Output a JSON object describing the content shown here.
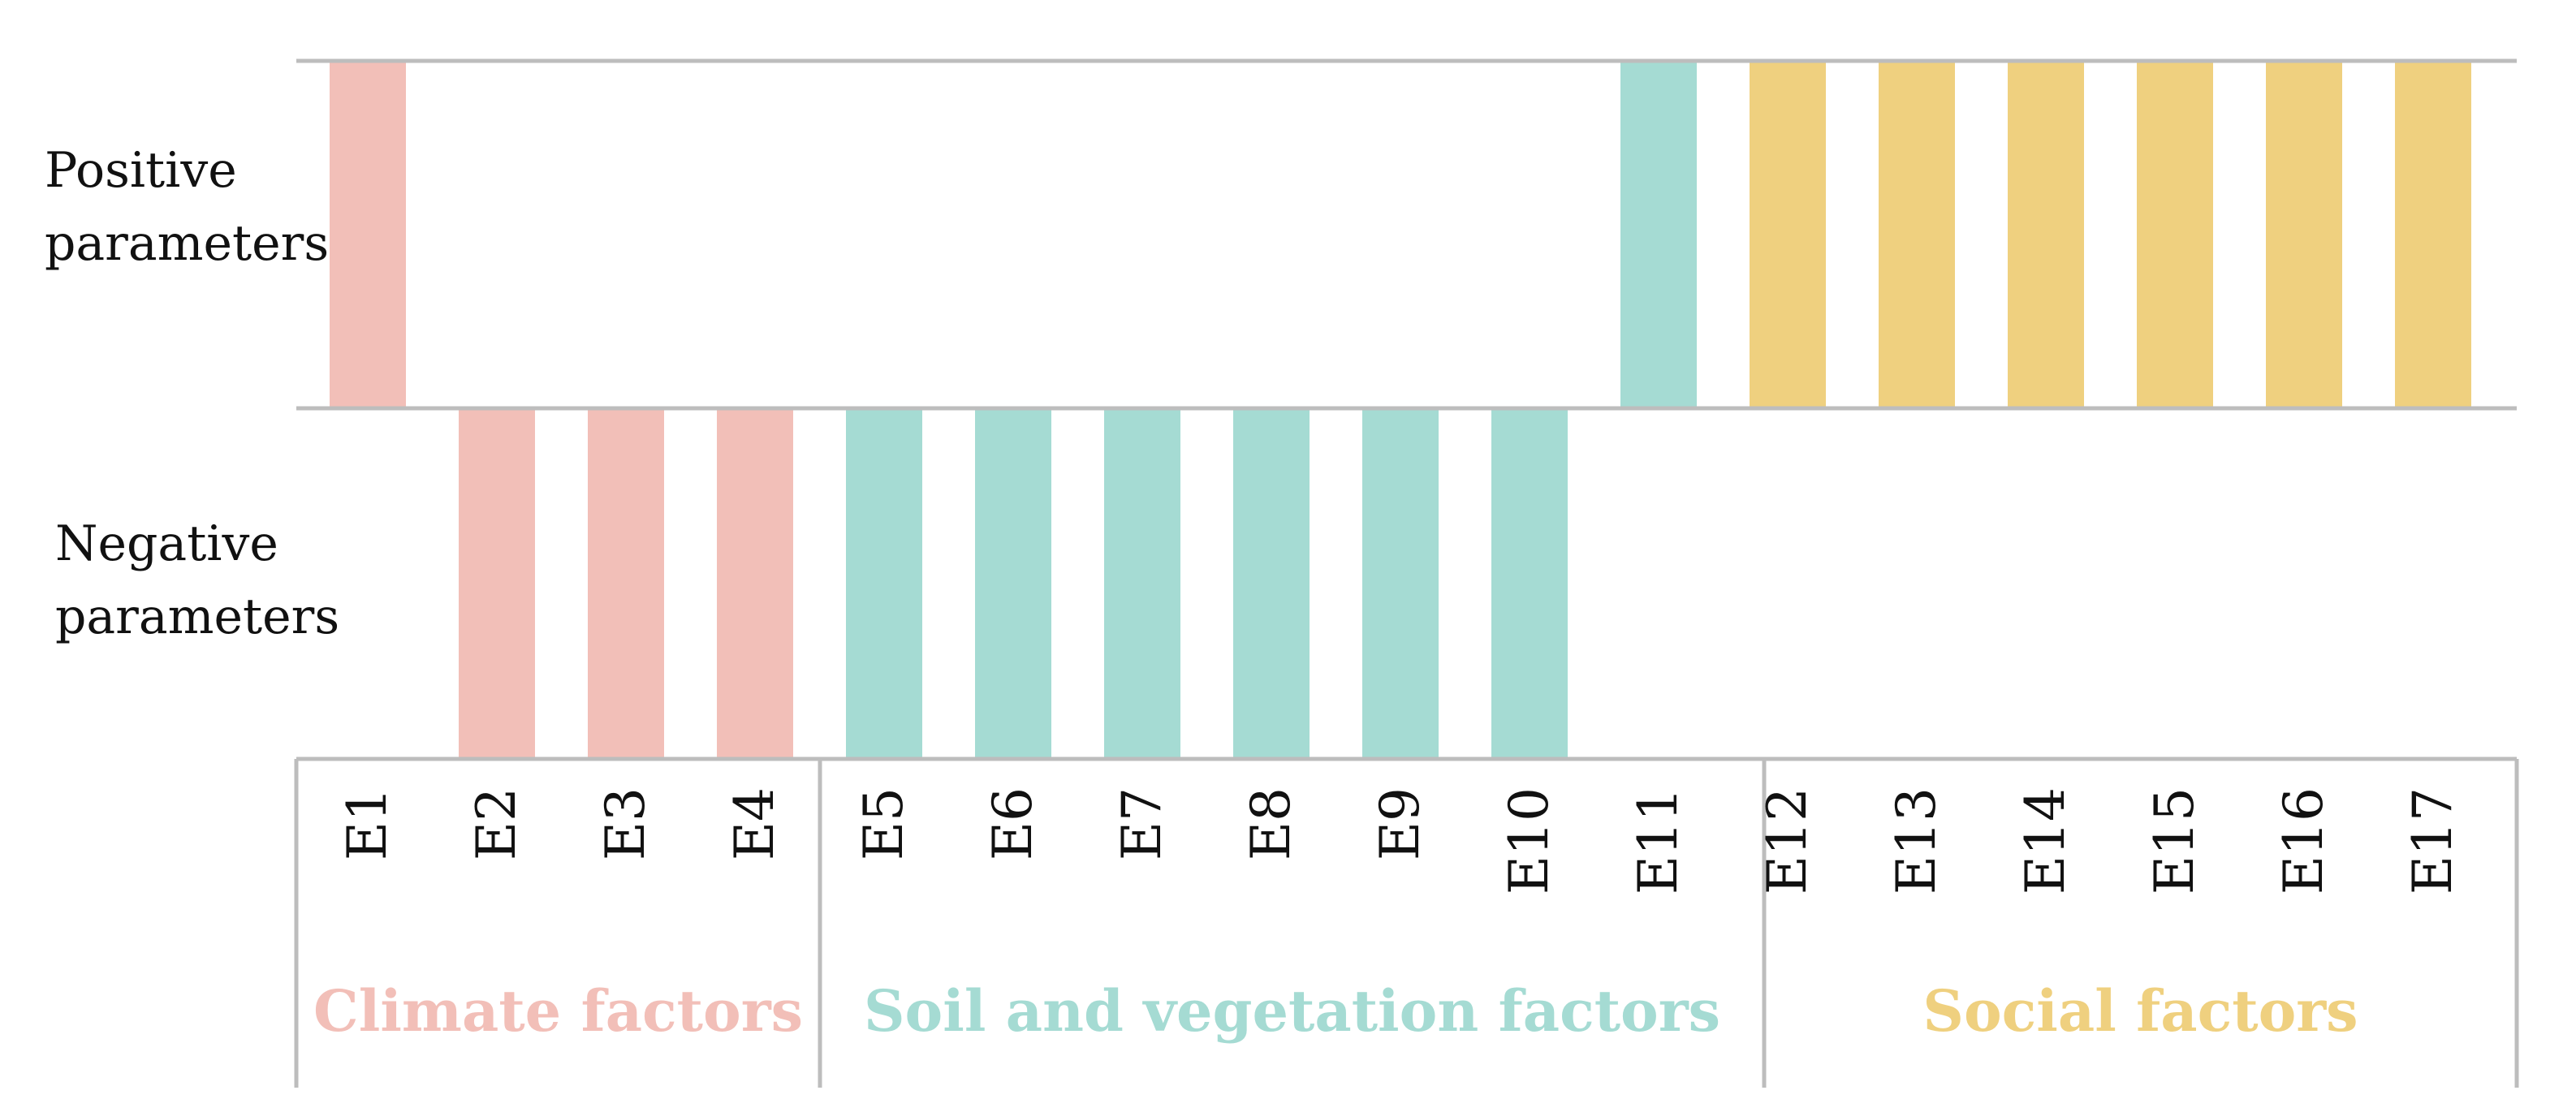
{
  "rows": {
    "positive": [
      "Positive",
      "parameters"
    ],
    "negative": [
      "Negative",
      "parameters"
    ]
  },
  "parameters": [
    {
      "id": "E1",
      "direction": "positive",
      "group": "climate"
    },
    {
      "id": "E2",
      "direction": "negative",
      "group": "climate"
    },
    {
      "id": "E3",
      "direction": "negative",
      "group": "climate"
    },
    {
      "id": "E4",
      "direction": "negative",
      "group": "climate"
    },
    {
      "id": "E5",
      "direction": "negative",
      "group": "soil"
    },
    {
      "id": "E6",
      "direction": "negative",
      "group": "soil"
    },
    {
      "id": "E7",
      "direction": "negative",
      "group": "soil"
    },
    {
      "id": "E8",
      "direction": "negative",
      "group": "soil"
    },
    {
      "id": "E9",
      "direction": "negative",
      "group": "soil"
    },
    {
      "id": "E10",
      "direction": "negative",
      "group": "soil"
    },
    {
      "id": "E11",
      "direction": "positive",
      "group": "soil"
    },
    {
      "id": "E12",
      "direction": "positive",
      "group": "social"
    },
    {
      "id": "E13",
      "direction": "positive",
      "group": "social"
    },
    {
      "id": "E14",
      "direction": "positive",
      "group": "social"
    },
    {
      "id": "E15",
      "direction": "positive",
      "group": "social"
    },
    {
      "id": "E16",
      "direction": "positive",
      "group": "social"
    },
    {
      "id": "E17",
      "direction": "positive",
      "group": "social"
    }
  ],
  "groups": {
    "climate": {
      "label": "Climate factors",
      "color": "#f2bfb8"
    },
    "soil": {
      "label": "Soil and vegetation factors",
      "color": "#a5dbd3"
    },
    "social": {
      "label": "Social factors",
      "color": "#efd07f"
    }
  },
  "colors": {
    "grid": "#bdbdbd",
    "text": "#111111"
  }
}
